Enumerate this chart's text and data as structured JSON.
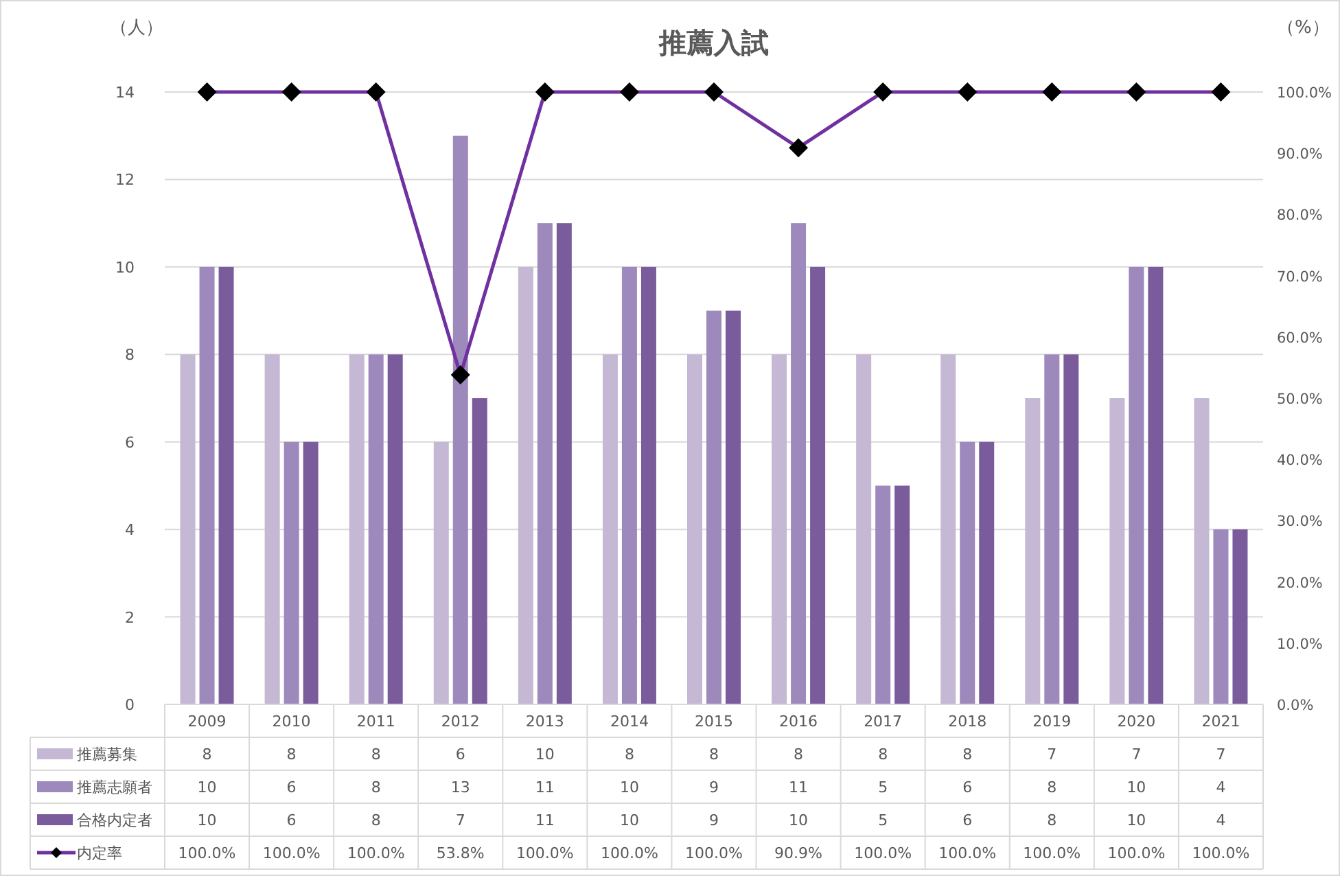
{
  "chart_data": {
    "type": "bar",
    "title": "推薦入試",
    "ylabel": "（人）",
    "y2label": "（%）",
    "categories": [
      "2009",
      "2010",
      "2011",
      "2012",
      "2013",
      "2014",
      "2015",
      "2016",
      "2017",
      "2018",
      "2019",
      "2020",
      "2021"
    ],
    "series": [
      {
        "name": "推薦募集",
        "color": "#c4b8d4",
        "values": [
          8,
          8,
          8,
          6,
          10,
          8,
          8,
          8,
          8,
          8,
          7,
          7,
          7
        ],
        "value_labels": [
          "8",
          "8",
          "8",
          "6",
          "10",
          "8",
          "8",
          "8",
          "8",
          "8",
          "7",
          "7",
          "7"
        ]
      },
      {
        "name": "推薦志願者",
        "color": "#9d89bb",
        "values": [
          10,
          6,
          8,
          13,
          11,
          10,
          9,
          11,
          5,
          6,
          8,
          10,
          4
        ],
        "value_labels": [
          "10",
          "6",
          "8",
          "13",
          "11",
          "10",
          "9",
          "11",
          "5",
          "6",
          "8",
          "10",
          "4"
        ]
      },
      {
        "name": "合格内定者",
        "color": "#7a5c9c",
        "values": [
          10,
          6,
          8,
          7,
          11,
          10,
          9,
          10,
          5,
          6,
          8,
          10,
          4
        ],
        "value_labels": [
          "10",
          "6",
          "8",
          "7",
          "11",
          "10",
          "9",
          "10",
          "5",
          "6",
          "8",
          "10",
          "4"
        ]
      },
      {
        "name": "内定率",
        "type": "line",
        "axis": "y2",
        "color": "#7030a0",
        "marker": "diamond",
        "line_style": "solid",
        "values": [
          100,
          100,
          100,
          53.8,
          100,
          100,
          100,
          90.9,
          100,
          100,
          100,
          100,
          100
        ],
        "value_labels": [
          "100.0%",
          "100.0%",
          "100.0%",
          "53.8%",
          "100.0%",
          "100.0%",
          "100.0%",
          "90.9%",
          "100.0%",
          "100.0%",
          "100.0%",
          "100.0%",
          "100.0%"
        ]
      }
    ],
    "ylim": [
      0,
      14
    ],
    "yticks": [
      0,
      2,
      4,
      6,
      8,
      10,
      12,
      14
    ],
    "y2lim": [
      0,
      100
    ],
    "y2ticks": [
      {
        "value": 0,
        "label": "0.0%"
      },
      {
        "value": 10,
        "label": "10.0%"
      },
      {
        "value": 20,
        "label": "20.0%"
      },
      {
        "value": 30,
        "label": "30.0%"
      },
      {
        "value": 40,
        "label": "40.0%"
      },
      {
        "value": 50,
        "label": "50.0%"
      },
      {
        "value": 60,
        "label": "60.0%"
      },
      {
        "value": 70,
        "label": "70.0%"
      },
      {
        "value": 80,
        "label": "80.0%"
      },
      {
        "value": 90,
        "label": "90.0%"
      },
      {
        "value": 100,
        "label": "100.0%"
      }
    ],
    "grid": "y",
    "legend": "bottom"
  }
}
